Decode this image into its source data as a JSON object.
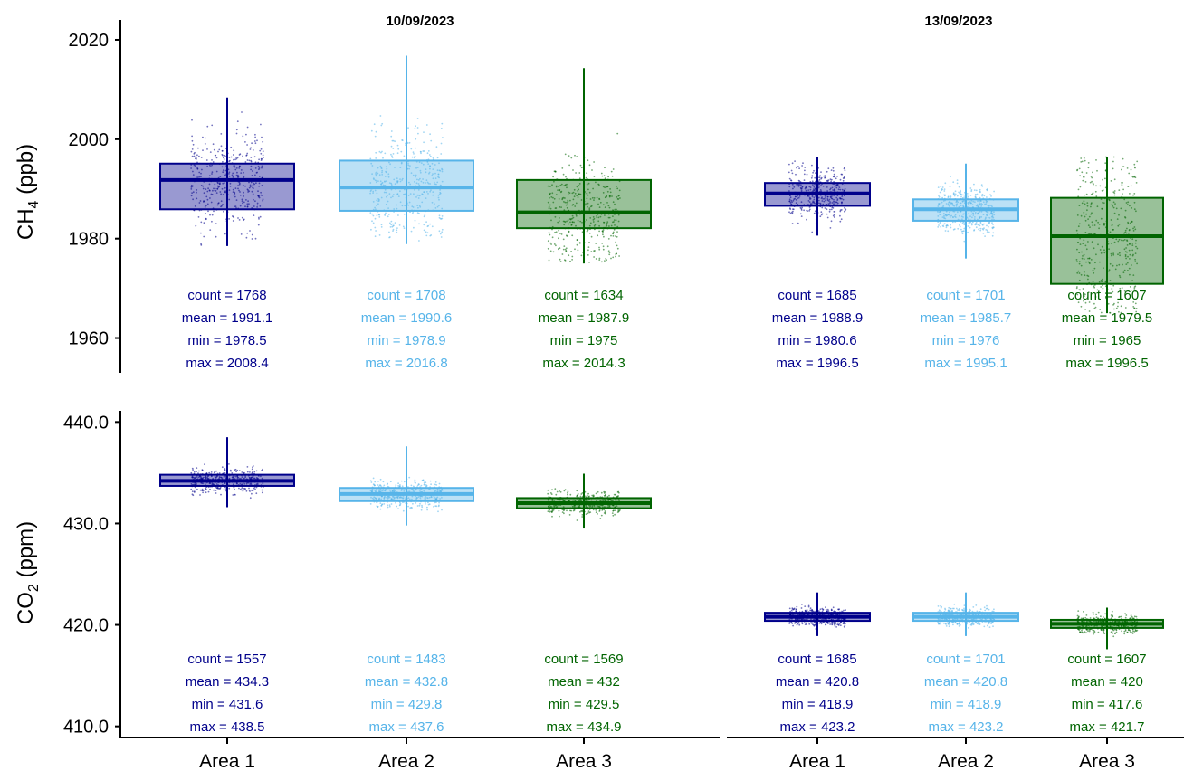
{
  "chart_data": {
    "type": "box",
    "dates": [
      "10/09/2023",
      "13/09/2023"
    ],
    "categories": [
      "Area 1",
      "Area 2",
      "Area 3"
    ],
    "colors": {
      "Area 1": "#00008B",
      "Area 2": "#56B4E9",
      "Area 3": "#006400"
    },
    "panels": [
      {
        "variable": "CH4",
        "ylabel_main": "CH",
        "ylabel_sub": "4",
        "ylabel_unit": " (ppb)",
        "ylim": [
          1953,
          2024
        ],
        "yticks": [
          1960,
          1980,
          2000,
          2020
        ],
        "ytick_labels": [
          "1960",
          "1980",
          "2000",
          "2020"
        ],
        "groups": [
          {
            "date": "10/09/2023",
            "area": "Area 1",
            "q1": 1985.9,
            "median": 1991.8,
            "q3": 1995.1,
            "min": 1978.5,
            "max": 2008.4,
            "count_text": "count = 1768",
            "mean_text": "mean = 1991.1",
            "min_text": "min = 1978.5",
            "max_text": "max = 2008.4"
          },
          {
            "date": "10/09/2023",
            "area": "Area 2",
            "q1": 1985.6,
            "median": 1990.3,
            "q3": 1995.7,
            "min": 1978.9,
            "max": 2016.8,
            "count_text": "count = 1708",
            "mean_text": "mean = 1990.6",
            "min_text": "min = 1978.9",
            "max_text": "max = 2016.8"
          },
          {
            "date": "10/09/2023",
            "area": "Area 3",
            "q1": 1982.1,
            "median": 1985.3,
            "q3": 1991.8,
            "min": 1975,
            "max": 2014.3,
            "count_text": "count = 1634",
            "mean_text": "mean = 1987.9",
            "min_text": "min = 1975",
            "max_text": "max = 2014.3"
          },
          {
            "date": "13/09/2023",
            "area": "Area 1",
            "q1": 1986.6,
            "median": 1989.1,
            "q3": 1991.2,
            "min": 1980.6,
            "max": 1996.5,
            "count_text": "count = 1685",
            "mean_text": "mean = 1988.9",
            "min_text": "min = 1980.6",
            "max_text": "max = 1996.5"
          },
          {
            "date": "13/09/2023",
            "area": "Area 2",
            "q1": 1983.6,
            "median": 1985.9,
            "q3": 1987.9,
            "min": 1976,
            "max": 1995.1,
            "count_text": "count = 1701",
            "mean_text": "mean = 1985.7",
            "min_text": "min = 1976",
            "max_text": "max = 1995.1"
          },
          {
            "date": "13/09/2023",
            "area": "Area 3",
            "q1": 1970.9,
            "median": 1980.5,
            "q3": 1988.2,
            "min": 1965,
            "max": 1996.5,
            "count_text": "count = 1607",
            "mean_text": "mean = 1979.5",
            "min_text": "min = 1965",
            "max_text": "max = 1996.5"
          }
        ]
      },
      {
        "variable": "CO2",
        "ylabel_main": "CO",
        "ylabel_sub": "2",
        "ylabel_unit": " (ppm)",
        "ylim": [
          408.9,
          441.1
        ],
        "yticks": [
          410,
          420,
          430,
          440
        ],
        "ytick_labels": [
          "410.0",
          "420.0",
          "430.0",
          "440.0"
        ],
        "groups": [
          {
            "date": "10/09/2023",
            "area": "Area 1",
            "q1": 433.7,
            "median": 434.2,
            "q3": 434.8,
            "min": 431.6,
            "max": 438.5,
            "count_text": "count = 1557",
            "mean_text": "mean = 434.3",
            "min_text": "min = 431.6",
            "max_text": "max = 438.5"
          },
          {
            "date": "10/09/2023",
            "area": "Area 2",
            "q1": 432.2,
            "median": 432.9,
            "q3": 433.5,
            "min": 429.8,
            "max": 437.6,
            "count_text": "count = 1483",
            "mean_text": "mean = 432.8",
            "min_text": "min = 429.8",
            "max_text": "max = 437.6"
          },
          {
            "date": "10/09/2023",
            "area": "Area 3",
            "q1": 431.5,
            "median": 432,
            "q3": 432.5,
            "min": 429.5,
            "max": 434.9,
            "count_text": "count = 1569",
            "mean_text": "mean = 432",
            "min_text": "min = 429.5",
            "max_text": "max = 434.9"
          },
          {
            "date": "13/09/2023",
            "area": "Area 1",
            "q1": 420.4,
            "median": 420.8,
            "q3": 421.2,
            "min": 418.9,
            "max": 423.2,
            "count_text": "count = 1685",
            "mean_text": "mean = 420.8",
            "min_text": "min = 418.9",
            "max_text": "max = 423.2"
          },
          {
            "date": "13/09/2023",
            "area": "Area 2",
            "q1": 420.4,
            "median": 420.8,
            "q3": 421.2,
            "min": 418.9,
            "max": 423.2,
            "count_text": "count = 1701",
            "mean_text": "mean = 420.8",
            "min_text": "min = 418.9",
            "max_text": "max = 423.2"
          },
          {
            "date": "13/09/2023",
            "area": "Area 3",
            "q1": 419.7,
            "median": 420.1,
            "q3": 420.5,
            "min": 417.6,
            "max": 421.7,
            "count_text": "count = 1607",
            "mean_text": "mean = 420",
            "min_text": "min = 417.6",
            "max_text": "max = 421.7"
          }
        ]
      }
    ]
  }
}
